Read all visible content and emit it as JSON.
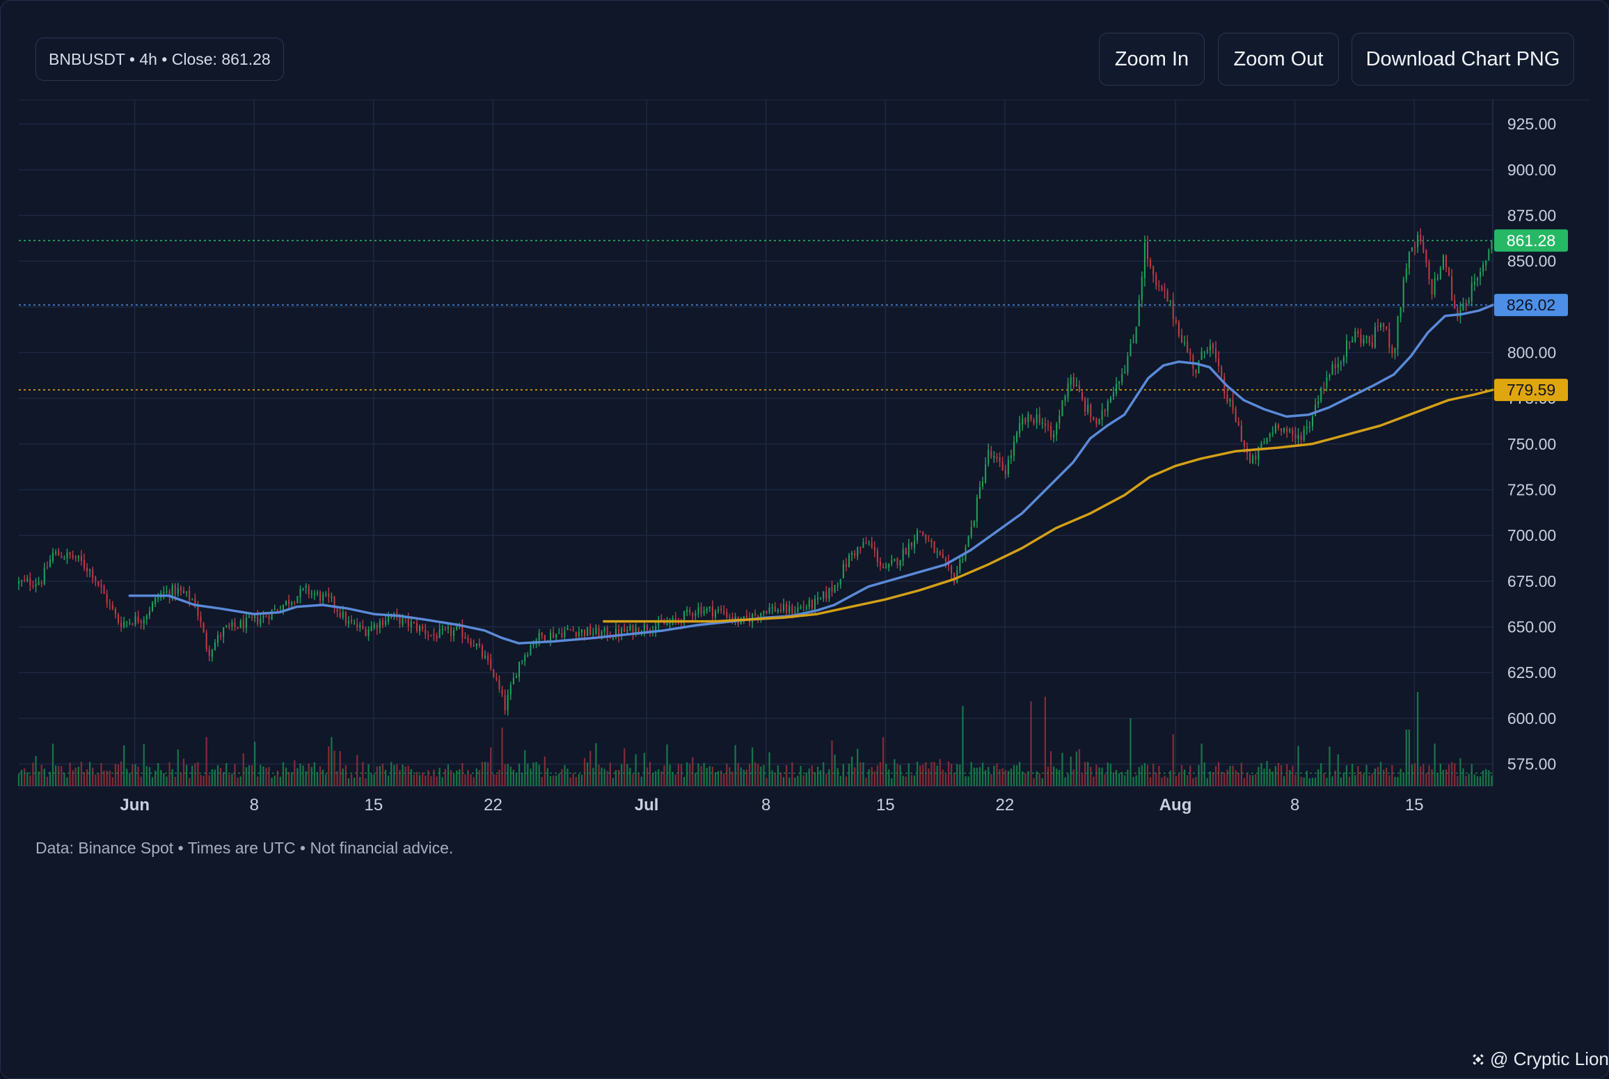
{
  "header": {
    "info": "BNBUSDT • 4h • Close: 861.28",
    "buttons": {
      "zoom_in": "Zoom In",
      "zoom_out": "Zoom Out",
      "download": "Download Chart PNG"
    }
  },
  "footer": {
    "note": "Data: Binance Spot • Times are UTC • Not financial advice."
  },
  "watermark": {
    "text": "@ Cryptic Lion",
    "icon": "binance-diamond-icon"
  },
  "chart_data": {
    "type": "candlestick",
    "symbol": "BNBUSDT",
    "interval": "4h",
    "close": 861.28,
    "ylim": [
      563,
      938
    ],
    "y_ticks": [
      "925.00",
      "900.00",
      "875.00",
      "850.00",
      "825.00",
      "800.00",
      "775.00",
      "750.00",
      "725.00",
      "700.00",
      "675.00",
      "650.00",
      "625.00",
      "600.00",
      "575.00"
    ],
    "x_range_days": [
      -6.8,
      79.6
    ],
    "x_ticks": [
      {
        "label": "Jun",
        "day": 0,
        "bold": true
      },
      {
        "label": "8",
        "day": 7,
        "bold": false
      },
      {
        "label": "15",
        "day": 14,
        "bold": false
      },
      {
        "label": "22",
        "day": 21,
        "bold": false
      },
      {
        "label": "Jul",
        "day": 30,
        "bold": true
      },
      {
        "label": "8",
        "day": 37,
        "bold": false
      },
      {
        "label": "15",
        "day": 44,
        "bold": false
      },
      {
        "label": "22",
        "day": 51,
        "bold": false
      },
      {
        "label": "Aug",
        "day": 61,
        "bold": true
      },
      {
        "label": "8",
        "day": 68,
        "bold": false
      },
      {
        "label": "15",
        "day": 75,
        "bold": false
      }
    ],
    "price_path": [
      [
        -6.8,
        674
      ],
      [
        -5.5,
        675
      ],
      [
        -4.8,
        690
      ],
      [
        -3.5,
        688
      ],
      [
        -2.5,
        680
      ],
      [
        -1.5,
        662
      ],
      [
        -0.9,
        652
      ],
      [
        0.5,
        655
      ],
      [
        1.5,
        668
      ],
      [
        2.5,
        670
      ],
      [
        3.5,
        664
      ],
      [
        4.3,
        636
      ],
      [
        5.2,
        648
      ],
      [
        6.5,
        652
      ],
      [
        7.5,
        655
      ],
      [
        9.0,
        664
      ],
      [
        10.0,
        670
      ],
      [
        11.5,
        664
      ],
      [
        12.5,
        652
      ],
      [
        13.5,
        648
      ],
      [
        15.0,
        656
      ],
      [
        16.5,
        650
      ],
      [
        17.5,
        645
      ],
      [
        19.0,
        648
      ],
      [
        20.0,
        640
      ],
      [
        21.0,
        625
      ],
      [
        21.7,
        606
      ],
      [
        22.5,
        630
      ],
      [
        23.5,
        644
      ],
      [
        25.5,
        648
      ],
      [
        28.0,
        646
      ],
      [
        30.0,
        650
      ],
      [
        31.5,
        652
      ],
      [
        33.0,
        660
      ],
      [
        34.5,
        658
      ],
      [
        35.5,
        652
      ],
      [
        37.0,
        660
      ],
      [
        38.5,
        659
      ],
      [
        40.0,
        663
      ],
      [
        41.0,
        672
      ],
      [
        42.0,
        690
      ],
      [
        43.0,
        696
      ],
      [
        44.0,
        680
      ],
      [
        45.0,
        690
      ],
      [
        46.0,
        703
      ],
      [
        47.0,
        690
      ],
      [
        48.0,
        676
      ],
      [
        49.0,
        702
      ],
      [
        50.0,
        745
      ],
      [
        51.0,
        735
      ],
      [
        52.0,
        762
      ],
      [
        53.0,
        765
      ],
      [
        53.8,
        752
      ],
      [
        54.8,
        788
      ],
      [
        55.7,
        770
      ],
      [
        56.5,
        760
      ],
      [
        57.2,
        778
      ],
      [
        58.0,
        792
      ],
      [
        58.6,
        808
      ],
      [
        59.2,
        858
      ],
      [
        59.8,
        836
      ],
      [
        60.5,
        830
      ],
      [
        61.5,
        805
      ],
      [
        62.2,
        790
      ],
      [
        63.0,
        808
      ],
      [
        63.8,
        780
      ],
      [
        64.6,
        762
      ],
      [
        65.4,
        738
      ],
      [
        66.0,
        748
      ],
      [
        67.0,
        762
      ],
      [
        68.0,
        752
      ],
      [
        68.8,
        760
      ],
      [
        69.5,
        780
      ],
      [
        70.5,
        795
      ],
      [
        71.5,
        810
      ],
      [
        72.5,
        805
      ],
      [
        73.0,
        818
      ],
      [
        73.8,
        800
      ],
      [
        74.5,
        848
      ],
      [
        75.3,
        863
      ],
      [
        76.0,
        834
      ],
      [
        76.8,
        852
      ],
      [
        77.4,
        820
      ],
      [
        78.2,
        832
      ],
      [
        78.8,
        840
      ],
      [
        79.4,
        858
      ],
      [
        79.6,
        861.28
      ]
    ],
    "series": [
      {
        "name": "",
        "color": "#5b8ad8",
        "points": [
          [
            -0.3,
            667
          ],
          [
            2,
            667
          ],
          [
            3.5,
            662
          ],
          [
            5,
            660
          ],
          [
            7,
            657
          ],
          [
            8.5,
            658
          ],
          [
            9.5,
            661
          ],
          [
            11,
            662
          ],
          [
            12.5,
            660
          ],
          [
            14,
            657
          ],
          [
            15.5,
            656
          ],
          [
            17,
            654
          ],
          [
            19,
            651
          ],
          [
            20.5,
            648
          ],
          [
            21.5,
            644
          ],
          [
            22.5,
            641
          ],
          [
            24.5,
            642
          ],
          [
            27,
            644
          ],
          [
            29,
            646
          ],
          [
            31,
            648
          ],
          [
            33,
            651
          ],
          [
            35,
            653
          ],
          [
            37,
            655
          ],
          [
            38.5,
            656
          ],
          [
            40,
            659
          ],
          [
            41,
            662
          ],
          [
            42,
            667
          ],
          [
            43,
            672
          ],
          [
            44.5,
            676
          ],
          [
            46,
            680
          ],
          [
            47.5,
            684
          ],
          [
            49,
            692
          ],
          [
            50.5,
            702
          ],
          [
            52,
            712
          ],
          [
            53.5,
            726
          ],
          [
            55,
            740
          ],
          [
            56,
            753
          ],
          [
            57,
            760
          ],
          [
            58,
            766
          ],
          [
            58.7,
            776
          ],
          [
            59.4,
            786
          ],
          [
            60.3,
            793
          ],
          [
            61.2,
            795
          ],
          [
            62.2,
            794
          ],
          [
            63,
            792
          ],
          [
            64,
            782
          ],
          [
            65,
            774
          ],
          [
            66.2,
            769
          ],
          [
            67.5,
            765
          ],
          [
            68.8,
            766
          ],
          [
            70,
            770
          ],
          [
            71.3,
            776
          ],
          [
            72.6,
            782
          ],
          [
            73.8,
            788
          ],
          [
            74.8,
            798
          ],
          [
            75.8,
            811
          ],
          [
            76.8,
            820
          ],
          [
            77.8,
            821
          ],
          [
            78.8,
            823
          ],
          [
            79.6,
            826.02
          ]
        ]
      },
      {
        "name": "",
        "color": "#d4a017",
        "points": [
          [
            27.5,
            653
          ],
          [
            30,
            653
          ],
          [
            32,
            653
          ],
          [
            34,
            653
          ],
          [
            36,
            654
          ],
          [
            38,
            655
          ],
          [
            40,
            657
          ],
          [
            42,
            661
          ],
          [
            44,
            665
          ],
          [
            46,
            670
          ],
          [
            48,
            676
          ],
          [
            50,
            684
          ],
          [
            52,
            693
          ],
          [
            54,
            704
          ],
          [
            56,
            712
          ],
          [
            58,
            722
          ],
          [
            59.5,
            732
          ],
          [
            61,
            738
          ],
          [
            62.5,
            742
          ],
          [
            64.5,
            746
          ],
          [
            67,
            748
          ],
          [
            69,
            750
          ],
          [
            71,
            755
          ],
          [
            73,
            760
          ],
          [
            75,
            767
          ],
          [
            77,
            774
          ],
          [
            78.5,
            777
          ],
          [
            79.6,
            779.59
          ]
        ]
      }
    ],
    "levels": [
      {
        "value": 861.28,
        "label": "861.28",
        "color": "#26b865",
        "text_color": "#ffffff"
      },
      {
        "value": 826.02,
        "label": "826.02",
        "color": "#4d8fe6",
        "text_color": "#0d1424"
      },
      {
        "value": 779.59,
        "label": "779.59",
        "color": "#e0a60e",
        "text_color": "#0d1424"
      },
      {
        "value": 570,
        "label": "",
        "color": "#1a7f4b",
        "text_color": "#ffffff"
      }
    ],
    "volume": {
      "shown": true,
      "spikes": [
        [
          -4.8,
          0.45
        ],
        [
          4.2,
          0.52
        ],
        [
          11.5,
          0.52
        ],
        [
          21.5,
          0.62
        ],
        [
          43.8,
          0.52
        ],
        [
          48.5,
          0.85
        ],
        [
          52.5,
          0.9
        ],
        [
          53.3,
          0.95
        ],
        [
          58.3,
          0.72
        ],
        [
          60.8,
          0.55
        ],
        [
          75.2,
          1.0
        ],
        [
          74.6,
          0.6
        ],
        [
          76.2,
          0.45
        ],
        [
          70.0,
          0.42
        ],
        [
          62.5,
          0.45
        ]
      ]
    },
    "colors": {
      "up": "#22a35a",
      "down": "#c23b44"
    },
    "grid": true
  }
}
